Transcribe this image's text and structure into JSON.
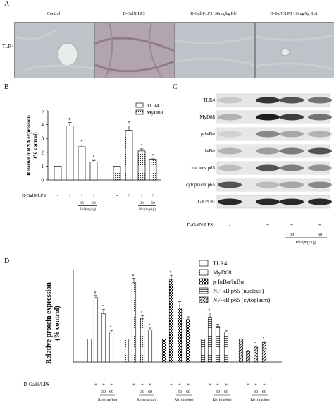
{
  "panelA": {
    "letter": "A",
    "row_label": "TLR4",
    "columns": [
      "Control",
      "D-GalN/LPS",
      "D-GalN/LPS+30mg/kg Rb1",
      "D-GalN/LPS+60mg/kg Rb1"
    ],
    "image_tints": [
      "#bdc3c9",
      "#b2a5ae",
      "#bdc3c9",
      "#bdc3c9"
    ]
  },
  "panelB": {
    "letter": "B",
    "treatment_label": "D-GalN/LPS",
    "conditions": [
      "-",
      "+",
      "+",
      "+"
    ],
    "dose_values": [
      "30",
      "60"
    ],
    "dose_unit": "Rb1(mg/kg)"
  },
  "panelC": {
    "letter": "C",
    "bands": [
      "TLR4",
      "MyD88",
      "p-IκBα",
      "IκBα",
      "nucleus p65",
      "cytoplasm p65",
      "GAPDH"
    ],
    "treatment_label": "D-GalN/LPS",
    "conditions": [
      "-",
      "+",
      "+",
      "+"
    ],
    "dose_values": [
      "30",
      "60"
    ],
    "dose_unit": "Rb1(mg/kg)"
  },
  "panelD": {
    "letter": "D",
    "treatment_label": "D-GalN/LPS",
    "dose_values": [
      "30",
      "60"
    ],
    "dose_unit": "Rb1(mg/kg)"
  },
  "chart_data": [
    {
      "type": "bar",
      "panel": "B",
      "ylabel": "Relative mRNA expression\n(% control)",
      "ylim": [
        0,
        5
      ],
      "yticks": [
        0,
        1,
        2,
        3,
        4,
        5
      ],
      "legend_position": "top-right",
      "series": [
        {
          "name": "TLR4",
          "values": [
            1.0,
            3.9,
            2.4,
            1.3
          ],
          "errors": [
            0,
            0.25,
            0.12,
            0.12
          ],
          "marks": [
            "",
            "#",
            "*",
            "*"
          ],
          "fill": "#ffffff"
        },
        {
          "name": "MyD88",
          "values": [
            1.0,
            3.6,
            2.1,
            1.45
          ],
          "errors": [
            0,
            0.3,
            0.15,
            0.08
          ],
          "marks": [
            "",
            "#",
            "*",
            "*"
          ],
          "fill": "dotted"
        }
      ]
    },
    {
      "type": "bar",
      "panel": "D",
      "ylabel": "Relative protein expression\n(% control)",
      "ylim": [
        0,
        4
      ],
      "legend_position": "top-right",
      "series": [
        {
          "name": "TLR4",
          "values": [
            1.0,
            2.8,
            2.1,
            1.3
          ],
          "errors": [
            0,
            0.1,
            0.2,
            0.08
          ],
          "marks": [
            "",
            "#",
            "*",
            "*"
          ],
          "fill": "#ffffff"
        },
        {
          "name": "MyD88",
          "values": [
            1.0,
            3.45,
            1.9,
            1.4
          ],
          "errors": [
            0,
            0.2,
            0.12,
            0.08
          ],
          "marks": [
            "",
            "#",
            "*",
            "*"
          ],
          "fill": "dotted"
        },
        {
          "name": "p-IκBα/IκBα",
          "values": [
            1.0,
            3.6,
            2.35,
            1.85
          ],
          "errors": [
            0,
            0.18,
            0.28,
            0.12
          ],
          "marks": [
            "",
            "#",
            "",
            ""
          ],
          "fill": "checker"
        },
        {
          "name": "NF-κB p65 (nucleus)",
          "values": [
            1.0,
            1.95,
            1.55,
            1.3
          ],
          "errors": [
            0,
            0.18,
            0.1,
            0.06
          ],
          "marks": [
            "",
            "#",
            "",
            ""
          ],
          "fill": "hstripe"
        },
        {
          "name": "NF-κB p65 (cytoplasm)",
          "values": [
            1.0,
            0.45,
            0.65,
            0.85
          ],
          "errors": [
            0,
            0.05,
            0.05,
            0.04
          ],
          "marks": [
            "",
            "",
            "*",
            "*"
          ],
          "fill": "diag"
        }
      ]
    }
  ]
}
